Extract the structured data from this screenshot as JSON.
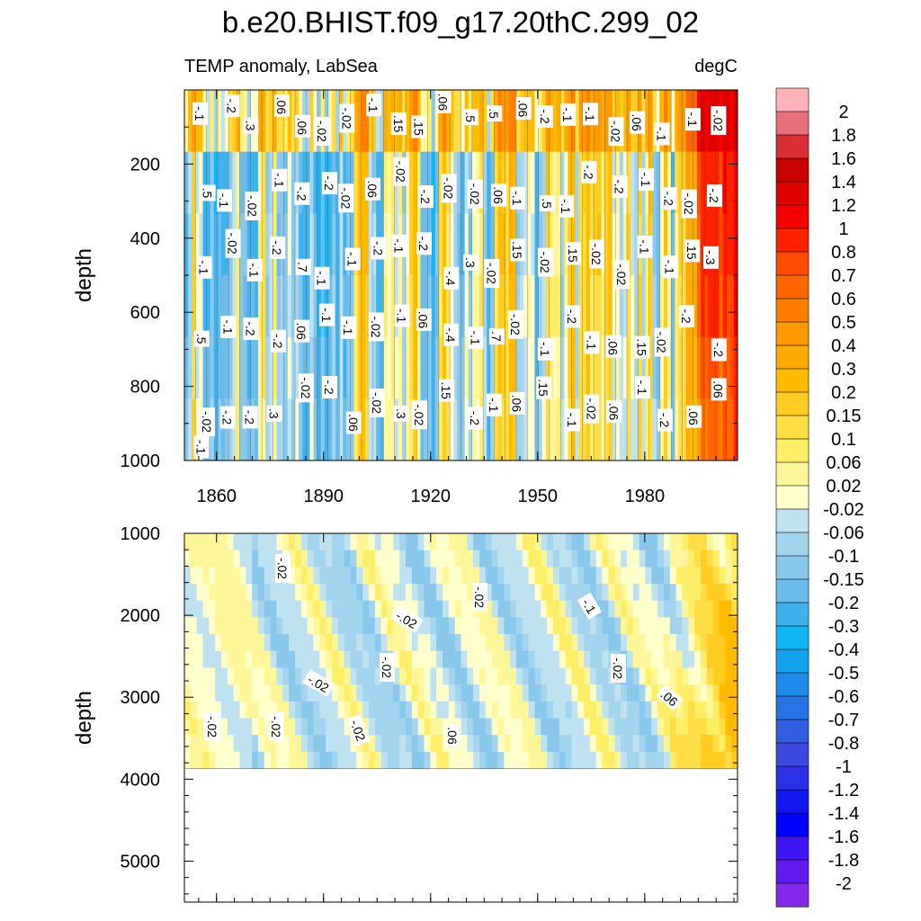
{
  "title": "b.e20.BHIST.f09_g17.20thC.299_02",
  "chart_data": {
    "type": "heatmap",
    "subtitle_left": "TEMP anomaly, LabSea",
    "subtitle_right": "degC",
    "xlabel": "",
    "x_ticks": [
      "1860",
      "1890",
      "1920",
      "1950",
      "1980"
    ],
    "x_tick_values": [
      1860,
      1890,
      1920,
      1950,
      1980
    ],
    "xlim": [
      1851,
      2006
    ],
    "panels": [
      {
        "name": "upper",
        "ylabel": "depth",
        "ylim": [
          0,
          1000
        ],
        "y_ticks": [
          "200",
          "400",
          "600",
          "800",
          "1000"
        ],
        "y_tick_values": [
          200,
          400,
          600,
          800,
          1000
        ]
      },
      {
        "name": "lower",
        "ylabel": "depth",
        "ylim": [
          1000,
          5500
        ],
        "y_ticks": [
          "1000",
          "2000",
          "3000",
          "4000",
          "5000"
        ],
        "y_tick_values": [
          1000,
          2000,
          3000,
          4000,
          5000
        ],
        "data_bottom_depth": 3870
      }
    ],
    "colorbar": {
      "levels": [
        "2",
        "1.8",
        "1.6",
        "1.4",
        "1.2",
        "1",
        "0.8",
        "0.7",
        "0.6",
        "0.5",
        "0.4",
        "0.3",
        "0.2",
        "0.15",
        "0.1",
        "0.06",
        "0.02",
        "-0.02",
        "-0.06",
        "-0.1",
        "-0.15",
        "-0.2",
        "-0.3",
        "-0.4",
        "-0.5",
        "-0.6",
        "-0.7",
        "-0.8",
        "-1",
        "-1.2",
        "-1.4",
        "-1.6",
        "-1.8",
        "-2"
      ],
      "colors": [
        "#FFB3B8",
        "#E8707A",
        "#D92E33",
        "#C80000",
        "#E10000",
        "#F40000",
        "#FF2200",
        "#FF4C00",
        "#FF6600",
        "#FF7E00",
        "#FF9900",
        "#FFAA00",
        "#FFBB00",
        "#FFCC22",
        "#FFDD44",
        "#FFEE66",
        "#FFF599",
        "#FFFFCC",
        "#BFE2F0",
        "#A3D4EE",
        "#89C8EB",
        "#6BBCEA",
        "#3FB2EE",
        "#12B5F4",
        "#14A2EE",
        "#1E8AE9",
        "#2874E5",
        "#335EE0",
        "#3B49DC",
        "#2B31E4",
        "#1119F0",
        "#0000FF",
        "#4016F3",
        "#6119F0",
        "#8428EC"
      ]
    },
    "contour_labels_upper": [
      "-.1",
      "-.2",
      ".3",
      ".06",
      ".06",
      "-.02",
      "-.02",
      "-.1",
      ".15",
      ".15",
      ".06",
      ".5",
      ".5",
      ".06",
      "-.2",
      "-.1",
      "-.1",
      "-.02",
      ".06",
      "-.1",
      "-.1",
      "-.02",
      ".5",
      "-.1",
      "-.02",
      "-.1",
      "-.2",
      "-.2",
      "-.02",
      ".06",
      "-.02",
      "-.2",
      "-.02",
      "-.02",
      ".06",
      "-.1",
      ".5",
      "-.1",
      "-.2",
      "-.2",
      "-.1",
      "-.2",
      "-.02",
      "-.2",
      "-.1",
      "-.02",
      "-.1",
      "-.2",
      ".7",
      "-.1",
      "-.1",
      "-.2",
      "-.1",
      "-.2",
      "-.4",
      ".3",
      "-.02",
      ".15",
      "-.02",
      ".15",
      "-.02",
      "-.02",
      "-.1",
      "-.1",
      ".15",
      "-.3",
      ".5",
      "-.1",
      "-.2",
      "-.2",
      ".06",
      "-.1",
      "-.1",
      "-.02",
      "-.1",
      ".06",
      "-.4",
      "-.1",
      ".7",
      "-.02",
      "-.1",
      "-.2",
      "-.1",
      ".06",
      ".15",
      "-.02",
      "-.2",
      "-.2",
      "-.02",
      "-.2",
      "-.2",
      ".3",
      "-.02",
      "-.2",
      ".06",
      "-.02",
      ".3",
      "-.02",
      ".15",
      "-.2",
      "-.1",
      ".06",
      ".15",
      "-.1",
      "-.02",
      ".06",
      "-.1",
      "-.2",
      ".06",
      ".06",
      "-.1"
    ],
    "contour_labels_lower": [
      "-.02",
      "-.02",
      "-.02",
      "-.1",
      "-.02",
      "-.02",
      "-.02",
      ".06",
      "-.02",
      "-.02",
      "-.02",
      ".06"
    ]
  }
}
